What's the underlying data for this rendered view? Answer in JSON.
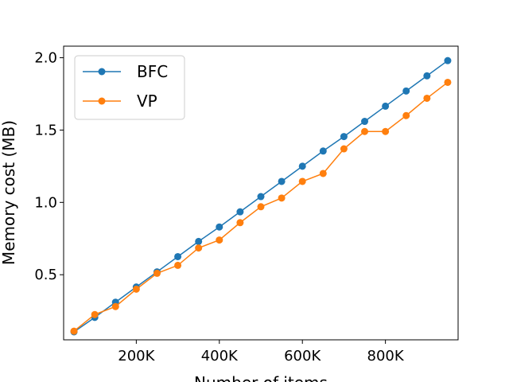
{
  "chart_data": {
    "type": "line",
    "title": "",
    "xlabel": "Number of items",
    "ylabel": "Memory cost (MB)",
    "xlim": [
      25000,
      975000
    ],
    "ylim": [
      0.05,
      2.08
    ],
    "x_ticks": [
      200000,
      400000,
      600000,
      800000
    ],
    "x_tick_labels": [
      "200K",
      "400K",
      "600K",
      "800K"
    ],
    "y_ticks": [
      0.5,
      1.0,
      1.5,
      2.0
    ],
    "y_tick_labels": [
      "0.5",
      "1.0",
      "1.5",
      "2.0"
    ],
    "grid": false,
    "legend_position": "top-left",
    "x": [
      50000,
      100000,
      150000,
      200000,
      250000,
      300000,
      350000,
      400000,
      450000,
      500000,
      550000,
      600000,
      650000,
      700000,
      750000,
      800000,
      850000,
      900000,
      950000
    ],
    "series": [
      {
        "name": "BFC",
        "color": "#1f77b4",
        "values": [
          0.105,
          0.205,
          0.31,
          0.415,
          0.52,
          0.625,
          0.73,
          0.83,
          0.935,
          1.04,
          1.145,
          1.25,
          1.355,
          1.455,
          1.56,
          1.665,
          1.77,
          1.875,
          1.98
        ]
      },
      {
        "name": "VP",
        "color": "#ff7f0e",
        "values": [
          0.11,
          0.225,
          0.28,
          0.4,
          0.51,
          0.565,
          0.685,
          0.74,
          0.86,
          0.97,
          1.03,
          1.145,
          1.2,
          1.37,
          1.49,
          1.49,
          1.6,
          1.72,
          1.83
        ]
      }
    ]
  }
}
